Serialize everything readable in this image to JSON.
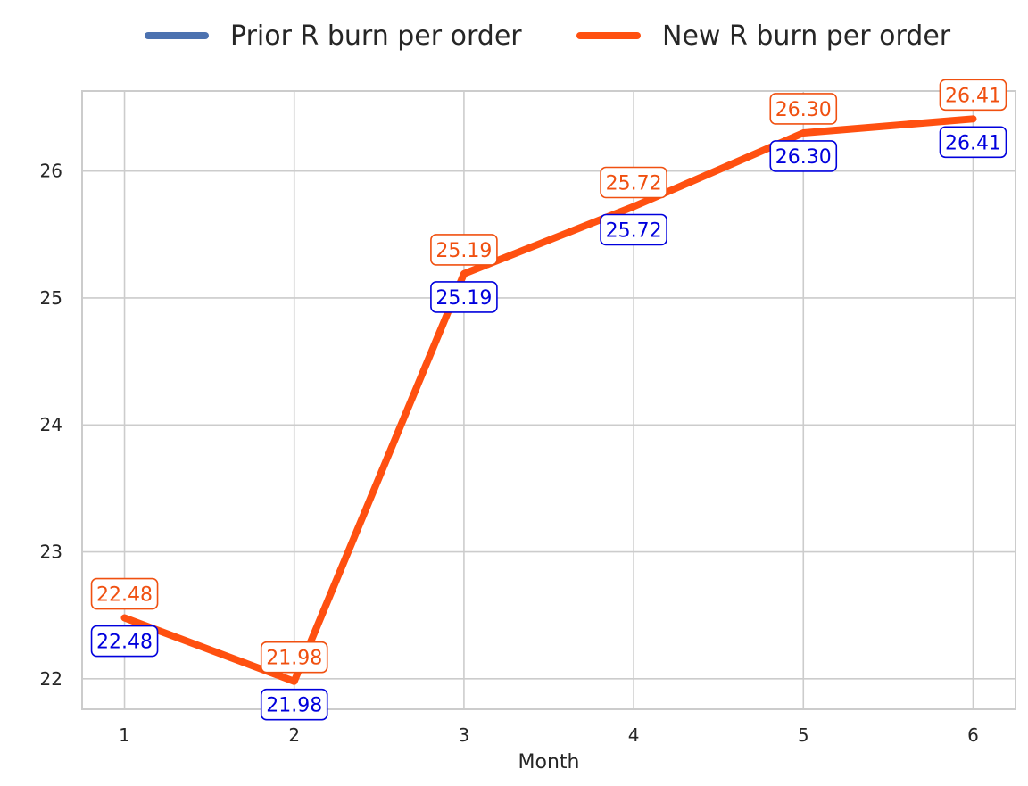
{
  "chart_data": {
    "type": "line",
    "xlabel": "Month",
    "ylabel": "",
    "x": [
      1,
      2,
      3,
      4,
      5,
      6
    ],
    "xlim": [
      0.75,
      6.25
    ],
    "ylim": [
      21.76,
      26.63
    ],
    "yticks": [
      22,
      23,
      24,
      25,
      26
    ],
    "grid": true,
    "legend_position": "top-center",
    "series": [
      {
        "name": "Prior R burn per order",
        "color": "#4c72b0",
        "label_color": "#0000dd",
        "values": [
          22.48,
          21.98,
          25.19,
          25.72,
          26.3,
          26.41
        ],
        "labels": [
          "22.48",
          "21.98",
          "25.19",
          "25.72",
          "26.30",
          "26.41"
        ]
      },
      {
        "name": "New R burn per order",
        "color": "#ff5010",
        "label_color": "#f05010",
        "values": [
          22.48,
          21.98,
          25.19,
          25.72,
          26.3,
          26.41
        ],
        "labels": [
          "22.48",
          "21.98",
          "25.19",
          "25.72",
          "26.30",
          "26.41"
        ]
      }
    ]
  }
}
